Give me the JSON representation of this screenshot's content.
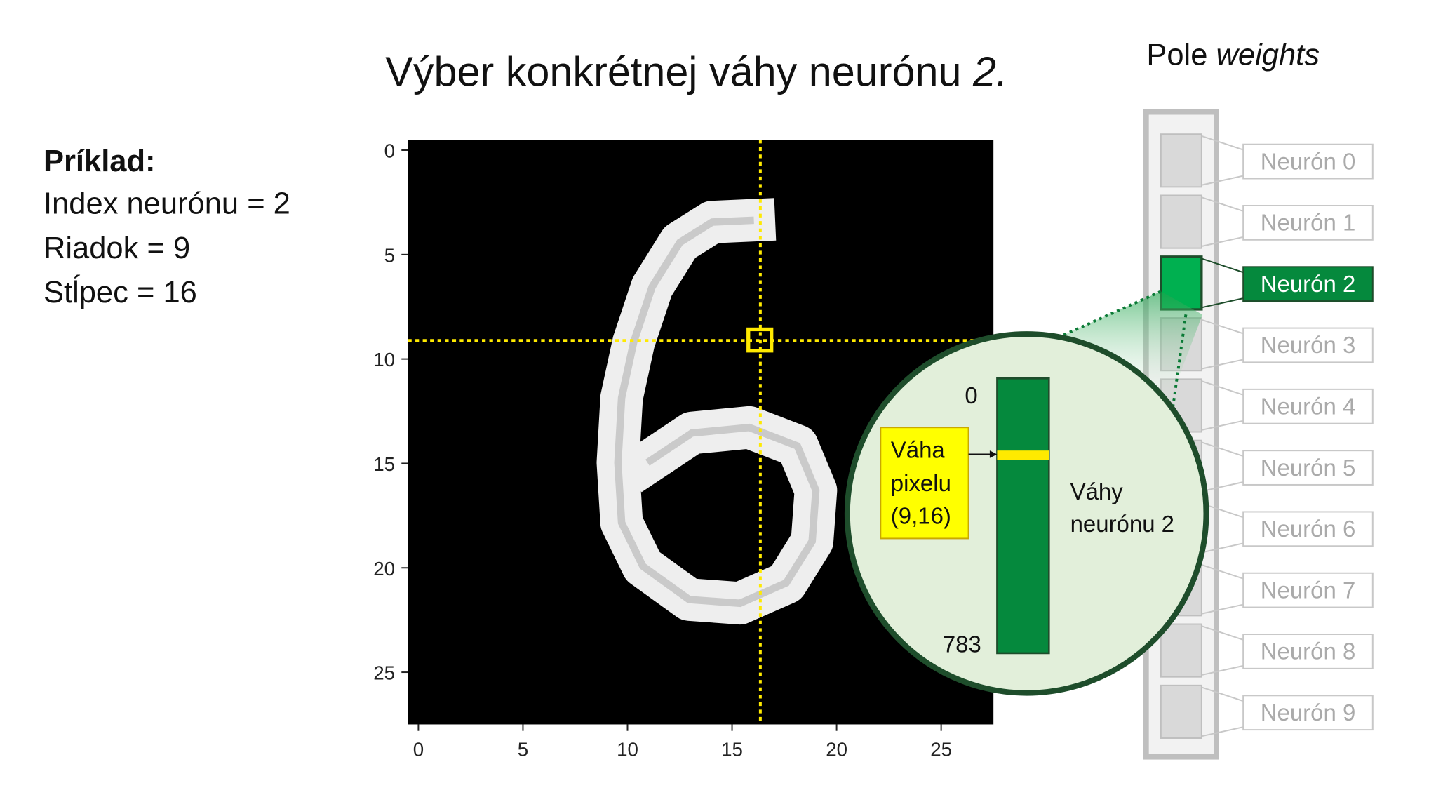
{
  "title": {
    "text": "Výber konkrétnej váhy neurónu ",
    "emphasis": "2."
  },
  "example": {
    "heading": "Príklad:",
    "lines": [
      "Index neurónu = 2",
      "Riadok = 9",
      "Stĺpec = 16"
    ]
  },
  "image": {
    "xlim": [
      -0.5,
      27.5
    ],
    "ylim": [
      -0.5,
      27.5
    ],
    "xticks": [
      0,
      5,
      10,
      15,
      20,
      25
    ],
    "yticks": [
      0,
      5,
      10,
      15,
      20,
      25
    ]
  },
  "array": {
    "title": "Pole ",
    "emphasis": "weights",
    "selected": 2,
    "neurons": [
      "Neurón 0",
      "Neurón 1",
      "Neurón 2",
      "Neurón 3",
      "Neurón 4",
      "Neurón 5",
      "Neurón 6",
      "Neurón 7",
      "Neurón 8",
      "Neurón 9"
    ]
  },
  "zoom": {
    "start": "0",
    "end": "783",
    "pixel_label": [
      "Váha",
      "pixelu",
      "(9,16)"
    ],
    "caption": [
      "Váhy",
      "neurónu 2"
    ]
  }
}
